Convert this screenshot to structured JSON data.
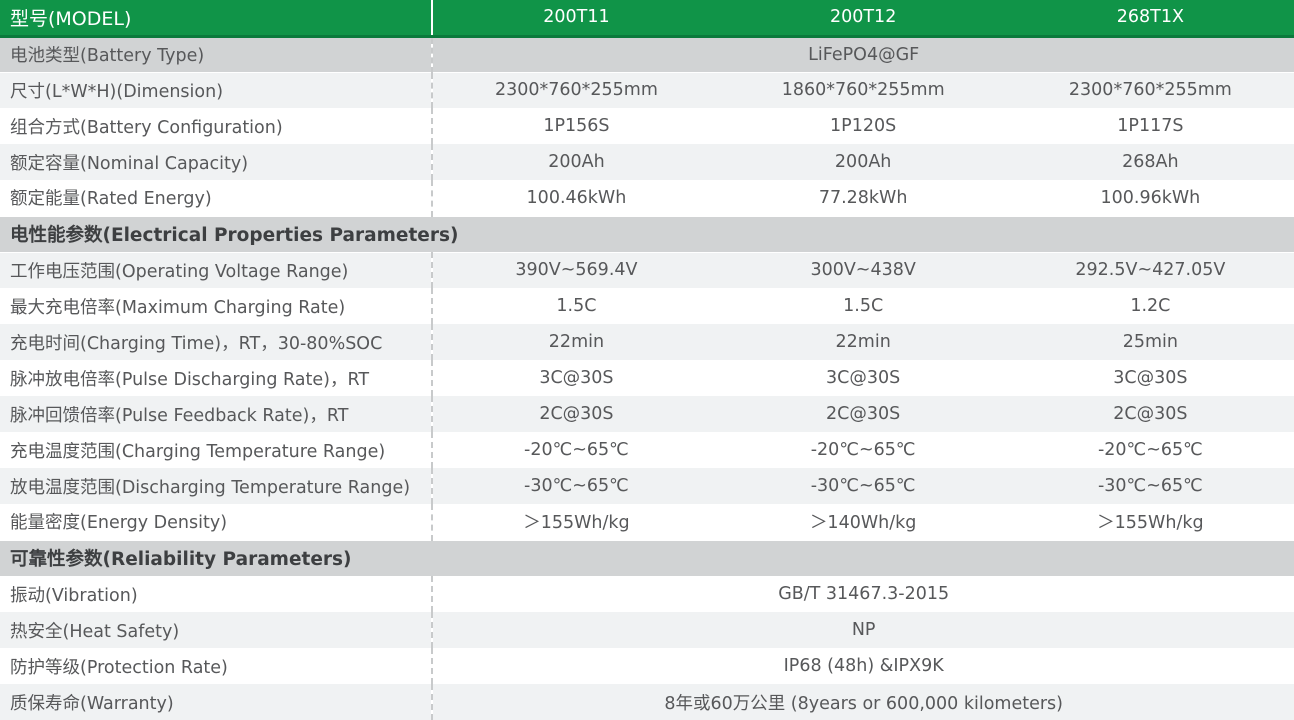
{
  "colors": {
    "header_green": "#109448",
    "header_green_dark": "#0a7a3c",
    "dark_band": "#d1d3d4",
    "light_band": "#f0f2f3",
    "text_gray": "#57585a",
    "dashed_divider": "#c8cacb"
  },
  "table": {
    "header": {
      "label": "型号(MODEL)",
      "models": [
        "200T11",
        "200T12",
        "268T1X"
      ]
    },
    "rows": [
      {
        "type": "merged",
        "shade": "dark",
        "label": "电池类型(Battery Type)",
        "value": "LiFePO4@GF"
      },
      {
        "type": "normal",
        "shade": "light",
        "label": "尺寸(L*W*H)(Dimension)",
        "values": [
          "2300*760*255mm",
          "1860*760*255mm",
          "2300*760*255mm"
        ]
      },
      {
        "type": "normal",
        "shade": "white",
        "label": "组合方式(Battery Configuration)",
        "values": [
          "1P156S",
          "1P120S",
          "1P117S"
        ]
      },
      {
        "type": "normal",
        "shade": "light",
        "label": "额定容量(Nominal Capacity)",
        "values": [
          "200Ah",
          "200Ah",
          "268Ah"
        ]
      },
      {
        "type": "normal",
        "shade": "white",
        "label": "额定能量(Rated Energy)",
        "values": [
          "100.46kWh",
          "77.28kWh",
          "100.96kWh"
        ]
      },
      {
        "type": "section",
        "label": "电性能参数(Electrical Properties Parameters)"
      },
      {
        "type": "normal",
        "shade": "light",
        "label": "工作电压范围(Operating Voltage Range)",
        "values": [
          "390V~569.4V",
          "300V~438V",
          "292.5V~427.05V"
        ]
      },
      {
        "type": "normal",
        "shade": "white",
        "label": "最大充电倍率(Maximum Charging Rate)",
        "values": [
          "1.5C",
          "1.5C",
          "1.2C"
        ]
      },
      {
        "type": "normal",
        "shade": "light",
        "label": "充电时间(Charging Time)，RT，30-80%SOC",
        "values": [
          "22min",
          "22min",
          "25min"
        ]
      },
      {
        "type": "normal",
        "shade": "white",
        "label": "脉冲放电倍率(Pulse Discharging Rate)，RT",
        "values": [
          "3C@30S",
          "3C@30S",
          "3C@30S"
        ]
      },
      {
        "type": "normal",
        "shade": "light",
        "label": "脉冲回馈倍率(Pulse Feedback Rate)，RT",
        "values": [
          "2C@30S",
          "2C@30S",
          "2C@30S"
        ]
      },
      {
        "type": "normal",
        "shade": "white",
        "label": "充电温度范围(Charging Temperature Range)",
        "values": [
          "-20℃~65℃",
          "-20℃~65℃",
          "-20℃~65℃"
        ]
      },
      {
        "type": "normal",
        "shade": "light",
        "label": "放电温度范围(Discharging Temperature Range)",
        "values": [
          "-30℃~65℃",
          "-30℃~65℃",
          "-30℃~65℃"
        ]
      },
      {
        "type": "normal",
        "shade": "white",
        "label": "能量密度(Energy Density)",
        "values": [
          "＞155Wh/kg",
          "＞140Wh/kg",
          "＞155Wh/kg"
        ]
      },
      {
        "type": "section",
        "label": "可靠性参数(Reliability Parameters)"
      },
      {
        "type": "merged",
        "shade": "white",
        "label": "振动(Vibration)",
        "value": "GB/T 31467.3-2015"
      },
      {
        "type": "merged",
        "shade": "light",
        "label": "热安全(Heat Safety)",
        "value": "NP"
      },
      {
        "type": "merged",
        "shade": "white",
        "label": "防护等级(Protection Rate)",
        "value": "IP68 (48h) &IPX9K"
      },
      {
        "type": "merged",
        "shade": "light",
        "label": "质保寿命(Warranty)",
        "value": "8年或60万公里 (8years or 600,000 kilometers)"
      }
    ]
  }
}
